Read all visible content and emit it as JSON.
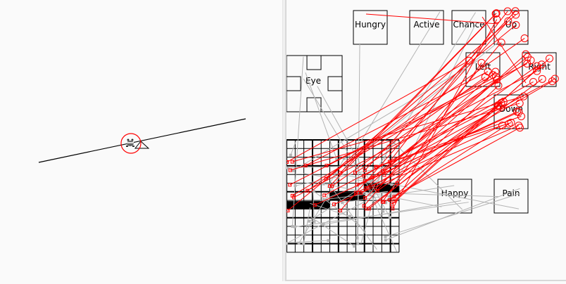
{
  "world": {
    "creature_icon": "frog-creature-icon",
    "selection_color": "#ff0000"
  },
  "brain": {
    "neurons": {
      "hungry": "Hungry",
      "active": "Active",
      "chance": "Chance",
      "up": "Up",
      "left": "Left",
      "right": "Right",
      "down": "Down",
      "eye": "Eye",
      "happy": "Happy",
      "pain": "Pain"
    },
    "colors": {
      "active_connection": "#ff0000",
      "inactive_connection": "#b4b4b4",
      "grid_active_cell": "#000000"
    }
  }
}
